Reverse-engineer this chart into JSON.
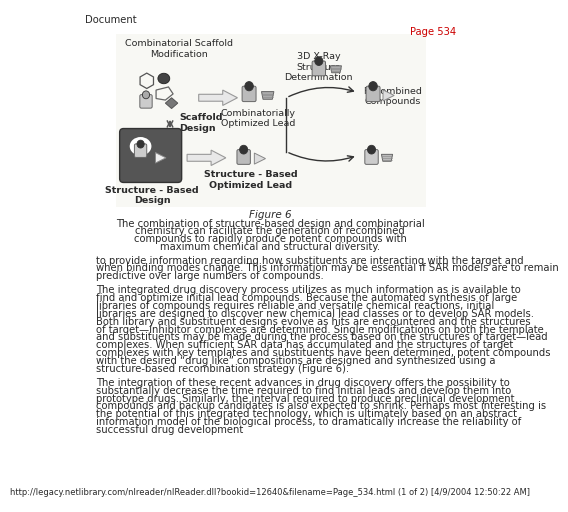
{
  "header_left": "Document",
  "header_right": "Page 534",
  "header_right_color": "#cc0000",
  "figure_caption_title": "Figure 6",
  "figure_caption_lines": [
    "The combination of structure-based design and combinatorial",
    "chemistry can facilitate the generation of recombined",
    "compounds to rapidly produce potent compounds with",
    "maximum chemical and structural diversity."
  ],
  "paragraph1": "to provide information regarding how substituents are interacting with the target and when binding modes change. This information may be essential if SAR models are to remain predictive over large numbers of compounds.",
  "paragraph2": "The integrated drug discovery process utilizes as much information as is available to find and optimize initial lead compounds. Because the automated synthesis of large libraries of compounds requires reliable and versatile chemical reactions, initial libraries are designed to discover new chemical lead classes or to develop SAR models. Both library and substituent designs evolve as hits are encountered and the structures of target—inhibitor complexes are determined. Single modifications on both the template and substituents may be made during the process based on the structures of target—lead complexes. When sufficient SAR data has accumulated and the structures of target complexes with key templates and substituents have been determined, potent compounds with the desired “drug like” compositions are designed and synthesized using a structure-based recombination strategy (Figure 6).",
  "paragraph3": "The integration of these recent advances in drug discovery offers the possibility to substantially decrease the time required to find initial leads and develop them into prototype drugs. Similarly, the interval required to produce preclinical development compounds and backup candidates is also expected to shrink. Perhaps most interesting is the potential of this integrated technology, which is ultimately based on an abstract information model of the biological process, to dramatically increase the reliability of successful drug development",
  "footer": "http://legacy.netlibrary.com/nlreader/nlReader.dll?bookid=12640&filename=Page_534.html (1 of 2) [4/9/2004 12:50:22 AM]",
  "lbl_comb_scaffold": "Combinatorial Scaffold\nModification",
  "lbl_xray": "3D X-Ray\nStructure\nDetermination",
  "lbl_recombined": "Recombined\nCompounds",
  "lbl_scaffold_design": "Scaffold\nDesign",
  "lbl_comb_opt_lead": "Combinatorially\nOptimized Lead",
  "lbl_struct_based": "Structure - Based\nDesign",
  "lbl_struct_opt_lead": "Structure - Based\nOptimized Lead",
  "bg_color": "#ffffff",
  "text_color": "#2a2a2a",
  "fig_bg": "#f8f8f4"
}
